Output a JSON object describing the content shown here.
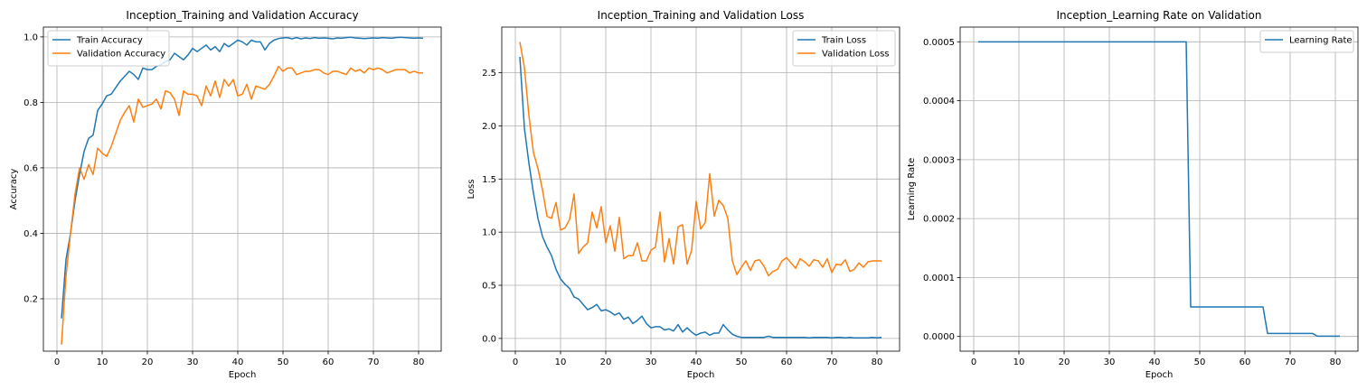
{
  "chart_data": [
    {
      "type": "line",
      "title": "Inception_Training and Validation Accuracy",
      "xlabel": "Epoch",
      "ylabel": "Accuracy",
      "xlim": [
        -3,
        85
      ],
      "ylim": [
        0.04,
        1.03
      ],
      "xticks": [
        0,
        10,
        20,
        30,
        40,
        50,
        60,
        70,
        80
      ],
      "xtick_labels": [
        "0",
        "10",
        "20",
        "30",
        "40",
        "50",
        "60",
        "70",
        "80"
      ],
      "yticks": [
        0.2,
        0.4,
        0.6,
        0.8,
        1.0
      ],
      "ytick_labels": [
        "0.2",
        "0.4",
        "0.6",
        "0.8",
        "1.0"
      ],
      "grid": true,
      "legend_position": "top-left",
      "series": [
        {
          "name": "Train Accuracy",
          "color": "#1f77b4",
          "x_start": 1,
          "values": [
            0.14,
            0.32,
            0.4,
            0.5,
            0.58,
            0.65,
            0.69,
            0.7,
            0.775,
            0.795,
            0.82,
            0.825,
            0.845,
            0.865,
            0.88,
            0.895,
            0.885,
            0.87,
            0.905,
            0.9,
            0.9,
            0.91,
            0.915,
            0.925,
            0.93,
            0.95,
            0.94,
            0.93,
            0.945,
            0.965,
            0.955,
            0.965,
            0.975,
            0.96,
            0.97,
            0.955,
            0.98,
            0.97,
            0.98,
            0.99,
            0.985,
            0.975,
            0.99,
            0.985,
            0.985,
            0.96,
            0.98,
            0.99,
            0.995,
            0.997,
            0.998,
            0.994,
            0.998,
            0.994,
            0.997,
            0.995,
            0.998,
            0.996,
            0.997,
            0.996,
            0.994,
            0.997,
            0.996,
            0.998,
            0.999,
            0.997,
            0.996,
            0.995,
            0.996,
            0.997,
            0.996,
            0.998,
            0.997,
            0.996,
            0.998,
            0.999,
            0.998,
            0.997,
            0.996,
            0.997,
            0.996
          ]
        },
        {
          "name": "Validation Accuracy",
          "color": "#ff7f0e",
          "x_start": 1,
          "values": [
            0.06,
            0.27,
            0.4,
            0.52,
            0.6,
            0.565,
            0.61,
            0.58,
            0.66,
            0.645,
            0.635,
            0.665,
            0.705,
            0.745,
            0.77,
            0.79,
            0.74,
            0.81,
            0.785,
            0.79,
            0.795,
            0.81,
            0.78,
            0.835,
            0.83,
            0.81,
            0.76,
            0.835,
            0.825,
            0.825,
            0.82,
            0.79,
            0.85,
            0.82,
            0.865,
            0.815,
            0.87,
            0.85,
            0.87,
            0.82,
            0.825,
            0.855,
            0.81,
            0.85,
            0.845,
            0.84,
            0.855,
            0.88,
            0.91,
            0.895,
            0.905,
            0.905,
            0.885,
            0.89,
            0.895,
            0.895,
            0.9,
            0.9,
            0.89,
            0.885,
            0.895,
            0.895,
            0.89,
            0.885,
            0.905,
            0.895,
            0.9,
            0.89,
            0.905,
            0.9,
            0.905,
            0.9,
            0.89,
            0.895,
            0.9,
            0.9,
            0.9,
            0.89,
            0.895,
            0.89,
            0.89
          ]
        }
      ]
    },
    {
      "type": "line",
      "title": "Inception_Training and Validation Loss",
      "xlabel": "Epoch",
      "ylabel": "Loss",
      "xlim": [
        -3,
        85
      ],
      "ylim": [
        -0.12,
        2.93
      ],
      "xticks": [
        0,
        10,
        20,
        30,
        40,
        50,
        60,
        70,
        80
      ],
      "xtick_labels": [
        "0",
        "10",
        "20",
        "30",
        "40",
        "50",
        "60",
        "70",
        "80"
      ],
      "yticks": [
        0.0,
        0.5,
        1.0,
        1.5,
        2.0,
        2.5
      ],
      "ytick_labels": [
        "0.0",
        "0.5",
        "1.0",
        "1.5",
        "2.0",
        "2.5"
      ],
      "grid": true,
      "legend_position": "top-right",
      "series": [
        {
          "name": "Train Loss",
          "color": "#1f77b4",
          "x_start": 1,
          "values": [
            2.65,
            1.98,
            1.65,
            1.37,
            1.13,
            0.96,
            0.86,
            0.78,
            0.65,
            0.56,
            0.51,
            0.47,
            0.39,
            0.37,
            0.32,
            0.27,
            0.29,
            0.32,
            0.26,
            0.27,
            0.25,
            0.22,
            0.24,
            0.18,
            0.2,
            0.14,
            0.17,
            0.21,
            0.14,
            0.1,
            0.11,
            0.11,
            0.08,
            0.09,
            0.07,
            0.13,
            0.06,
            0.1,
            0.06,
            0.03,
            0.05,
            0.06,
            0.03,
            0.05,
            0.05,
            0.13,
            0.08,
            0.04,
            0.02,
            0.01,
            0.01,
            0.01,
            0.01,
            0.01,
            0.01,
            0.02,
            0.01,
            0.01,
            0.01,
            0.01,
            0.01,
            0.01,
            0.01,
            0.01,
            0.005,
            0.01,
            0.01,
            0.01,
            0.01,
            0.005,
            0.01,
            0.01,
            0.005,
            0.01,
            0.005,
            0.005,
            0.005,
            0.005,
            0.01,
            0.005,
            0.01
          ]
        },
        {
          "name": "Validation Loss",
          "color": "#ff7f0e",
          "x_start": 1,
          "values": [
            2.79,
            2.55,
            2.1,
            1.75,
            1.6,
            1.4,
            1.15,
            1.13,
            1.28,
            1.02,
            1.04,
            1.12,
            1.36,
            0.8,
            0.86,
            0.9,
            1.19,
            1.04,
            1.24,
            0.9,
            1.06,
            0.82,
            1.14,
            0.75,
            0.78,
            0.78,
            0.9,
            0.73,
            0.73,
            0.83,
            0.86,
            1.19,
            0.72,
            0.94,
            0.7,
            1.05,
            1.07,
            0.7,
            0.83,
            1.29,
            1.03,
            1.09,
            1.55,
            1.15,
            1.3,
            1.25,
            1.13,
            0.73,
            0.6,
            0.67,
            0.73,
            0.64,
            0.73,
            0.74,
            0.68,
            0.59,
            0.63,
            0.65,
            0.73,
            0.76,
            0.71,
            0.66,
            0.75,
            0.72,
            0.68,
            0.74,
            0.73,
            0.67,
            0.75,
            0.62,
            0.7,
            0.69,
            0.74,
            0.63,
            0.65,
            0.71,
            0.67,
            0.72,
            0.73,
            0.73,
            0.73
          ]
        }
      ]
    },
    {
      "type": "line",
      "title": "Inception_Learning Rate on Validation",
      "xlabel": "Epoch",
      "ylabel": "Learning Rate",
      "xlim": [
        -3,
        85
      ],
      "ylim": [
        -2.5e-05,
        0.000525
      ],
      "xticks": [
        0,
        10,
        20,
        30,
        40,
        50,
        60,
        70,
        80
      ],
      "xtick_labels": [
        "0",
        "10",
        "20",
        "30",
        "40",
        "50",
        "60",
        "70",
        "80"
      ],
      "yticks": [
        0.0,
        0.0001,
        0.0002,
        0.0003,
        0.0004,
        0.0005
      ],
      "ytick_labels": [
        "0.0000",
        "0.0001",
        "0.0002",
        "0.0003",
        "0.0004",
        "0.0005"
      ],
      "grid": true,
      "legend_position": "top-right",
      "series": [
        {
          "name": "Learning Rate",
          "color": "#1f77b4",
          "points": [
            [
              1,
              0.0005
            ],
            [
              47,
              0.0005
            ],
            [
              48,
              5e-05
            ],
            [
              64,
              5e-05
            ],
            [
              65,
              5e-06
            ],
            [
              75,
              5e-06
            ],
            [
              76,
              5e-07
            ],
            [
              81,
              5e-07
            ]
          ]
        }
      ]
    }
  ]
}
